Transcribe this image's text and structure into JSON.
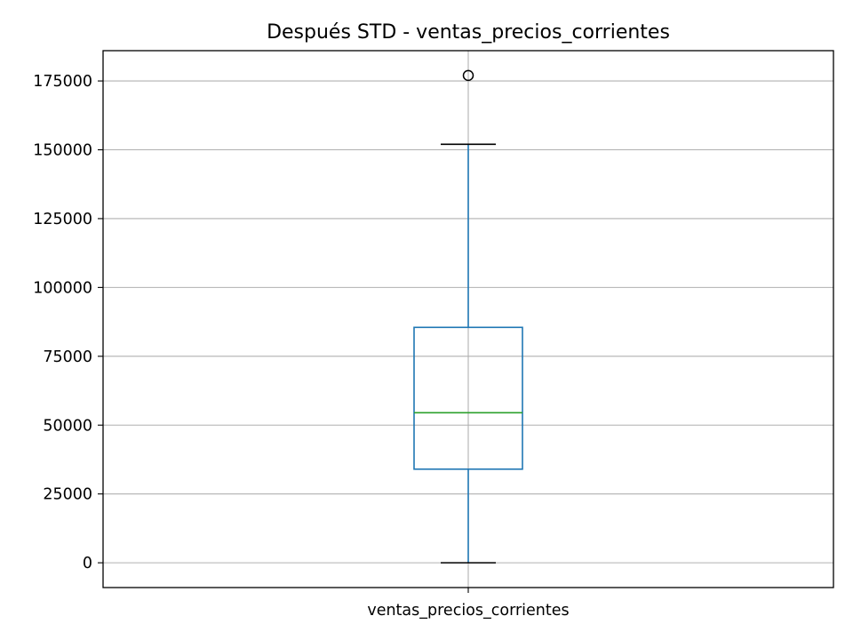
{
  "chart_data": {
    "type": "box",
    "title": "Después STD - ventas_precios_corrientes",
    "categories": [
      "ventas_precios_corrientes"
    ],
    "ylim": [
      -9000,
      186000
    ],
    "yticks": [
      0,
      25000,
      50000,
      75000,
      100000,
      125000,
      150000,
      175000
    ],
    "ytick_labels": [
      "0",
      "25000",
      "50000",
      "75000",
      "100000",
      "125000",
      "150000",
      "175000"
    ],
    "grid": true,
    "boxes": [
      {
        "category": "ventas_precios_corrientes",
        "whisker_low": 0,
        "q1": 34000,
        "median": 54500,
        "q3": 85500,
        "whisker_high": 152000,
        "outliers": [
          177000
        ]
      }
    ],
    "colors": {
      "box": "#1f77b4",
      "median": "#2ca02c",
      "whiskers": "#1f77b4",
      "caps": "#000000",
      "outlier": "#000000",
      "grid": "#b0b0b0"
    }
  }
}
